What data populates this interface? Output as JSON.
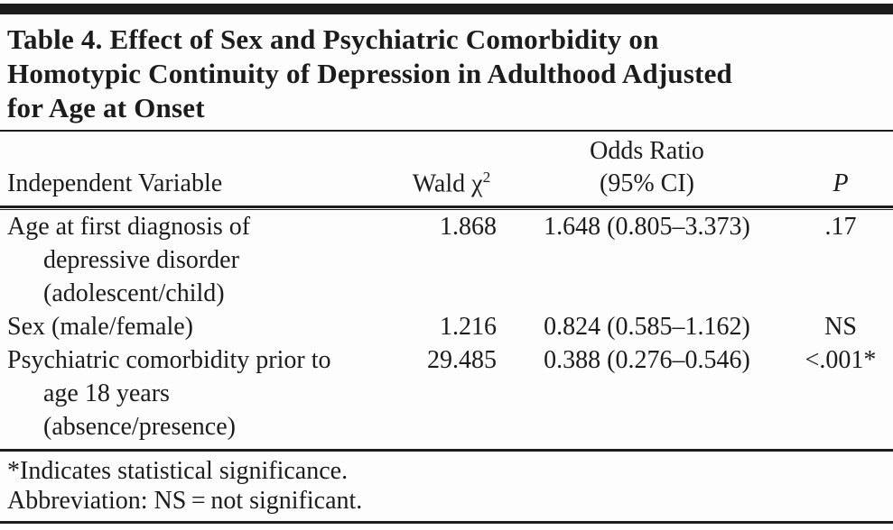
{
  "colors": {
    "ink": "#1c1c1c",
    "background": "#fdfdfd"
  },
  "table": {
    "title_lines": [
      "Table 4. Effect of Sex and Psychiatric Comorbidity on",
      "Homotypic Continuity of Depression in Adulthood Adjusted",
      "for Age at Onset"
    ],
    "columns": {
      "variable": "Independent Variable",
      "wald_prefix": "Wald χ",
      "wald_sup": "2",
      "or_line1": "Odds Ratio",
      "or_line2": "(95% CI)",
      "p": "P"
    },
    "rows": [
      {
        "variable_main": "Age at first diagnosis of",
        "variable_cont": [
          "depressive disorder",
          "(adolescent/child)"
        ],
        "wald": "1.868",
        "or_ci": "1.648 (0.805–3.373)",
        "p": ".17"
      },
      {
        "variable_main": "Sex (male/female)",
        "variable_cont": [],
        "wald": "1.216",
        "or_ci": "0.824 (0.585–1.162)",
        "p": "NS"
      },
      {
        "variable_main": "Psychiatric comorbidity prior to",
        "variable_cont": [
          "age 18 years",
          "(absence/presence)"
        ],
        "wald": "29.485",
        "or_ci": "0.388 (0.276–0.546)",
        "p": "<.001*"
      }
    ],
    "footnotes": [
      "*Indicates statistical significance.",
      "Abbreviation: NS = not significant."
    ]
  }
}
